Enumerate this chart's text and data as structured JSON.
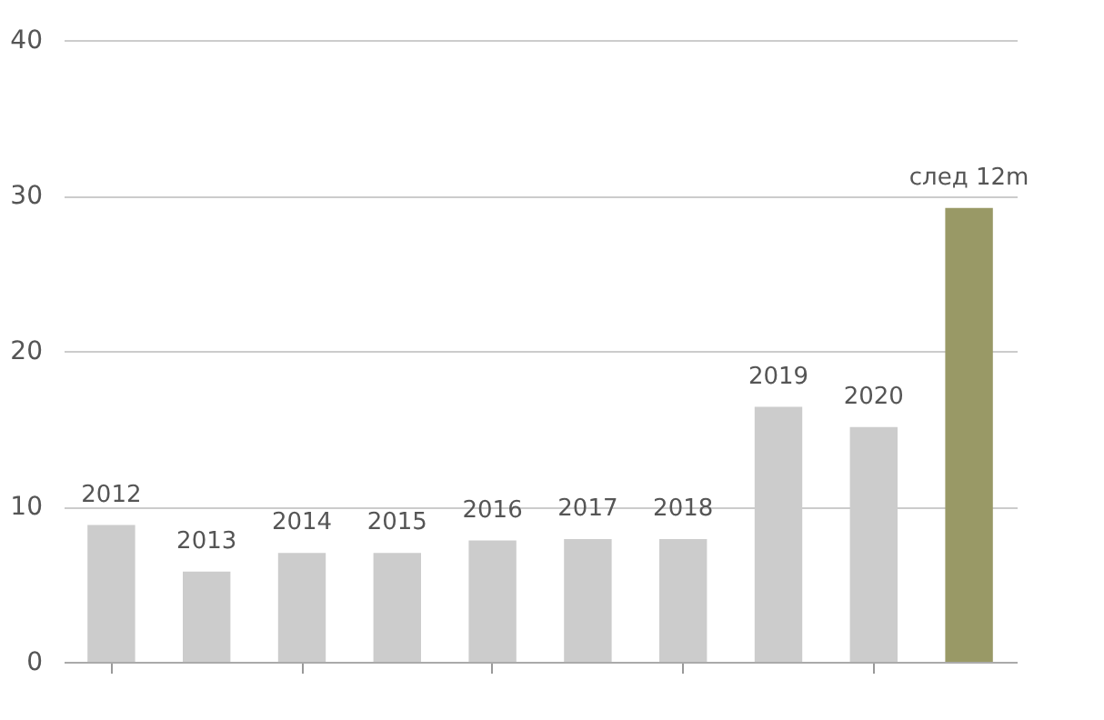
{
  "chart_data": {
    "type": "bar",
    "categories": [
      "2012",
      "2013",
      "2014",
      "2015",
      "2016",
      "2017",
      "2018",
      "2019",
      "2020",
      "след 12m"
    ],
    "values": [
      8.8,
      5.8,
      7.0,
      7.0,
      7.8,
      7.9,
      7.9,
      16.4,
      15.1,
      29.2
    ],
    "colors": [
      "#cccccc",
      "#cccccc",
      "#cccccc",
      "#cccccc",
      "#cccccc",
      "#cccccc",
      "#cccccc",
      "#cccccc",
      "#cccccc",
      "#999966"
    ],
    "ylim": [
      0,
      40
    ],
    "yticks": [
      0,
      10,
      20,
      30,
      40
    ],
    "grid": "y"
  }
}
